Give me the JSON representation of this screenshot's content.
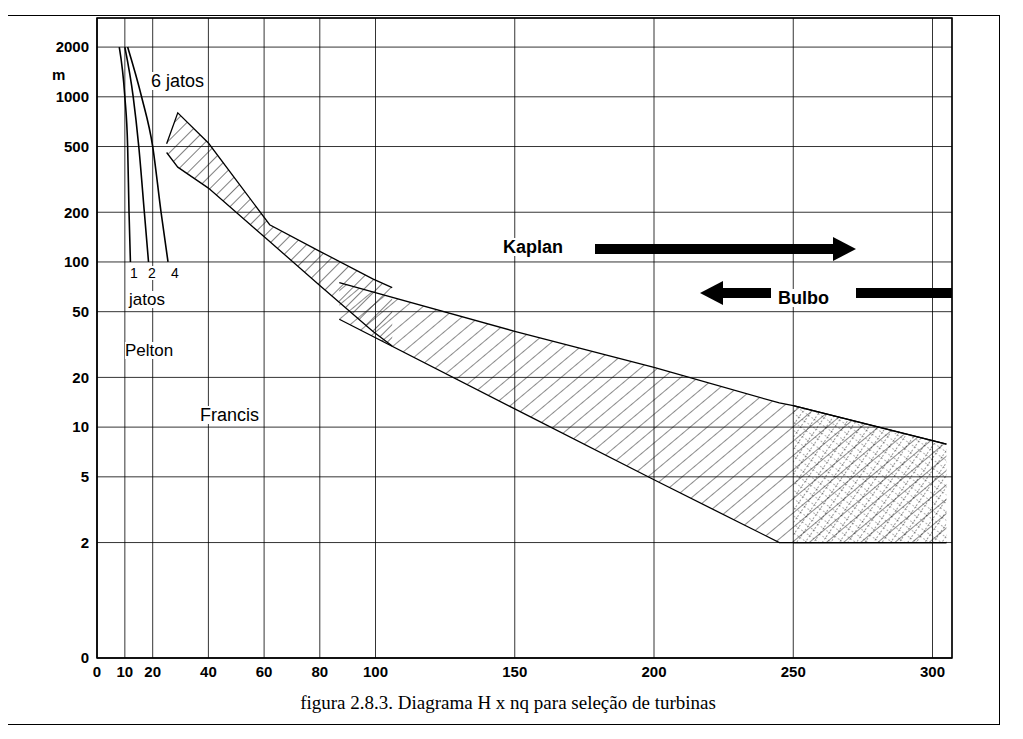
{
  "chart_data": {
    "type": "line",
    "title": "figura 2.8.3. Diagrama H x nq para seleção de turbinas",
    "y_label": "m",
    "log": "y",
    "grid": true,
    "xlim": [
      0,
      307
    ],
    "xticks": [
      0,
      10,
      20,
      40,
      60,
      80,
      100,
      150,
      200,
      250,
      300
    ],
    "ylim": [
      0.4,
      3000
    ],
    "yticks": [
      {
        "value": 0.4,
        "label": "0"
      },
      2,
      5,
      10,
      20,
      50,
      100,
      200,
      500,
      1000,
      2000
    ],
    "annotations": [
      "6 jatos",
      "jatos",
      "Pelton"
    ],
    "series": [
      {
        "name": "1",
        "type": "line",
        "color": "#000000",
        "x": [
          8,
          10,
          11,
          11.5,
          12
        ],
        "values": [
          2000,
          1000,
          500,
          200,
          100
        ]
      },
      {
        "name": "2",
        "type": "line",
        "color": "#000000",
        "x": [
          10,
          13,
          15,
          17,
          18.5
        ],
        "values": [
          2000,
          1000,
          500,
          200,
          100
        ]
      },
      {
        "name": "4",
        "type": "line",
        "color": "#000000",
        "x": [
          11,
          16,
          20,
          23,
          25.5
        ],
        "values": [
          2000,
          1000,
          500,
          200,
          100
        ]
      },
      {
        "name": "Francis",
        "type": "area",
        "color": "#000000",
        "x": [
          25,
          29,
          40,
          62,
          80,
          99,
          106
        ],
        "upper": [
          520,
          800,
          525,
          168,
          116,
          79,
          70
        ],
        "lower": [
          460,
          375,
          280,
          133,
          72,
          38,
          31
        ]
      },
      {
        "name": "Kaplan",
        "type": "area",
        "color": "#000000",
        "x": [
          87,
          150,
          200,
          245,
          250,
          305
        ],
        "upper": [
          75,
          38,
          23,
          14,
          13.5,
          7.9
        ],
        "lower": [
          45,
          12.9,
          4.8,
          2,
          2,
          2
        ]
      },
      {
        "name": "Bulbo",
        "type": "area",
        "color": "#000000",
        "x": [
          250,
          305
        ],
        "upper": [
          13.5,
          7.9
        ],
        "lower": [
          2,
          2
        ]
      }
    ]
  }
}
